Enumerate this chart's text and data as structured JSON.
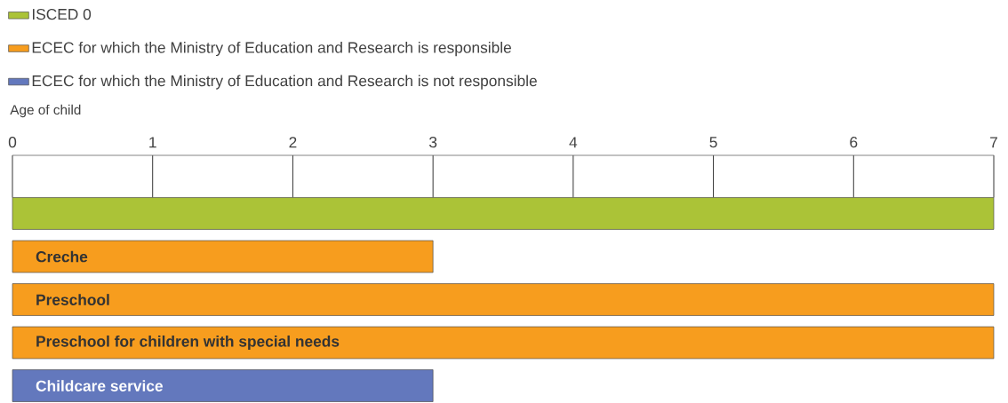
{
  "chart_data": {
    "type": "bar",
    "orientation": "horizontal",
    "xlabel": "Age of child",
    "categories": [
      null,
      "Creche",
      "Preschool",
      "Preschool for children with special needs",
      "Childcare service"
    ],
    "series": [
      {
        "name": "ISCED 0",
        "color": "#abc337",
        "values": [
          7,
          null,
          null,
          null,
          null
        ]
      },
      {
        "name": "ECEC for which the Ministry of Education and Research is responsible",
        "color": "#f79d1e",
        "values": [
          null,
          3,
          7,
          7,
          null
        ]
      },
      {
        "name": "ECEC for which the Ministry of Education and Research is not responsible",
        "color": "#6378bd",
        "values": [
          null,
          null,
          null,
          null,
          3
        ]
      }
    ],
    "xlim": [
      0,
      7
    ],
    "xticks": [
      0,
      1,
      2,
      3,
      4,
      5,
      6,
      7
    ],
    "legend": "top left"
  }
}
